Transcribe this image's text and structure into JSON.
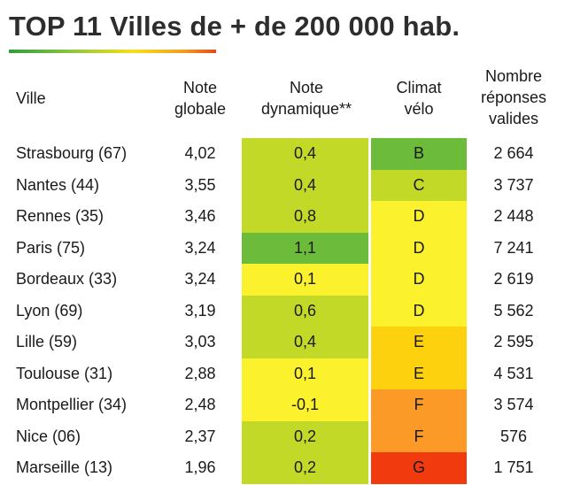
{
  "title": "TOP 11 Villes de + de 200 000 hab.",
  "headers": {
    "ville": "Ville",
    "note_globale": [
      "Note",
      "globale"
    ],
    "note_dynamique": [
      "Note",
      "dynamique**"
    ],
    "climat_velo": [
      "Climat",
      "vélo"
    ],
    "nombre": [
      "Nombre",
      "réponses",
      "valides"
    ]
  },
  "colors": {
    "A": "#2e9a3a",
    "B": "#6dbb3a",
    "C": "#c2d927",
    "D": "#fbf12d",
    "E": "#fdd10e",
    "F": "#fb9a27",
    "G": "#f23a0f",
    "dyn_low": "#fbf12d",
    "dyn_mid": "#c2d927",
    "dyn_high": "#6dbb3a"
  },
  "rows": [
    {
      "ville": "Strasbourg (67)",
      "note_globale": "4,02",
      "note_dynamique": "0,4",
      "dyn_level": "mid",
      "climat": "B",
      "nombre": "2 664"
    },
    {
      "ville": "Nantes (44)",
      "note_globale": "3,55",
      "note_dynamique": "0,4",
      "dyn_level": "mid",
      "climat": "C",
      "nombre": "3 737"
    },
    {
      "ville": "Rennes (35)",
      "note_globale": "3,46",
      "note_dynamique": "0,8",
      "dyn_level": "mid",
      "climat": "D",
      "nombre": "2 448"
    },
    {
      "ville": "Paris (75)",
      "note_globale": "3,24",
      "note_dynamique": "1,1",
      "dyn_level": "high",
      "climat": "D",
      "nombre": "7 241"
    },
    {
      "ville": "Bordeaux (33)",
      "note_globale": "3,24",
      "note_dynamique": "0,1",
      "dyn_level": "low",
      "climat": "D",
      "nombre": "2 619"
    },
    {
      "ville": "Lyon (69)",
      "note_globale": "3,19",
      "note_dynamique": "0,6",
      "dyn_level": "mid",
      "climat": "D",
      "nombre": "5 562"
    },
    {
      "ville": "Lille (59)",
      "note_globale": "3,03",
      "note_dynamique": "0,4",
      "dyn_level": "mid",
      "climat": "E",
      "nombre": "2 595"
    },
    {
      "ville": "Toulouse (31)",
      "note_globale": "2,88",
      "note_dynamique": "0,1",
      "dyn_level": "low",
      "climat": "E",
      "nombre": "4 531"
    },
    {
      "ville": "Montpellier (34)",
      "note_globale": "2,48",
      "note_dynamique": "-0,1",
      "dyn_level": "low",
      "climat": "F",
      "nombre": "3 574"
    },
    {
      "ville": "Nice (06)",
      "note_globale": "2,37",
      "note_dynamique": "0,2",
      "dyn_level": "mid",
      "climat": "F",
      "nombre": "576"
    },
    {
      "ville": "Marseille (13)",
      "note_globale": "1,96",
      "note_dynamique": "0,2",
      "dyn_level": "mid",
      "climat": "G",
      "nombre": "1 751"
    }
  ]
}
